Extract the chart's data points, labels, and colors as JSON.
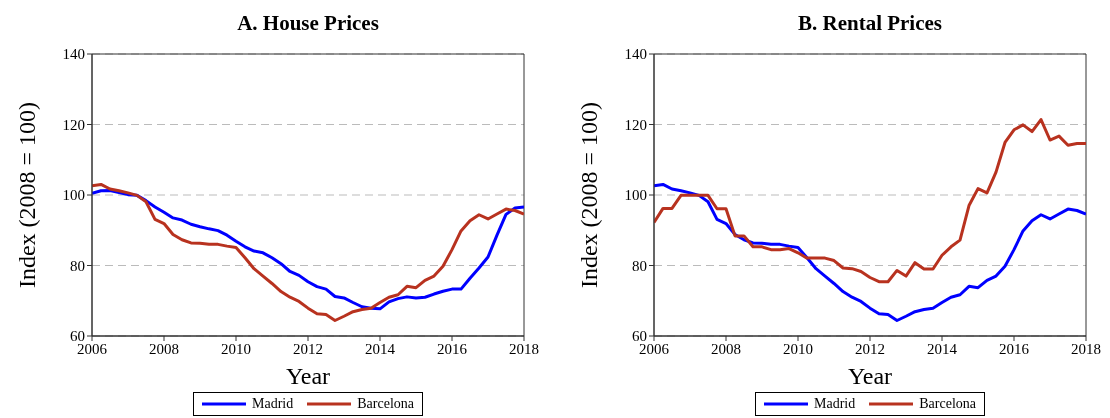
{
  "chart_data": [
    {
      "type": "line",
      "title": "A. House Prices",
      "xlabel": "Year",
      "ylabel": "Index (2008 = 100)",
      "x": [
        2006,
        2006.25,
        2006.5,
        2006.75,
        2007,
        2007.25,
        2007.5,
        2007.75,
        2008,
        2008.25,
        2008.5,
        2008.75,
        2009,
        2009.25,
        2009.5,
        2009.75,
        2010,
        2010.25,
        2010.5,
        2010.75,
        2011,
        2011.25,
        2011.5,
        2011.75,
        2012,
        2012.25,
        2012.5,
        2012.75,
        2013,
        2013.25,
        2013.5,
        2013.75,
        2014,
        2014.25,
        2014.5,
        2014.75,
        2015,
        2015.25,
        2015.5,
        2015.75,
        2016,
        2016.25,
        2016.5,
        2016.75,
        2017,
        2017.25,
        2017.5,
        2017.75,
        2018
      ],
      "series": [
        {
          "name": "Madrid",
          "color": "#0000ff",
          "values": [
            100.5,
            101.2,
            101.3,
            100.7,
            100.1,
            99.9,
            98.4,
            96.6,
            95.1,
            93.5,
            92.9,
            91.7,
            91.0,
            90.4,
            89.9,
            88.6,
            86.9,
            85.3,
            84.1,
            83.6,
            82.2,
            80.5,
            78.3,
            77.2,
            75.4,
            74.0,
            73.3,
            71.2,
            70.8,
            69.5,
            68.3,
            67.9,
            67.7,
            69.7,
            70.6,
            71.1,
            70.8,
            71.0,
            71.9,
            72.7,
            73.3,
            73.3,
            76.4,
            79.3,
            82.4,
            88.6,
            94.5,
            96.3,
            96.6
          ]
        },
        {
          "name": "Barcelona",
          "color": "#b8321f",
          "values": [
            102.6,
            103.0,
            101.7,
            101.2,
            100.6,
            99.9,
            98.1,
            93.1,
            91.9,
            88.8,
            87.3,
            86.4,
            86.3,
            86.0,
            86.0,
            85.5,
            85.1,
            82.2,
            79.1,
            77.0,
            74.9,
            72.6,
            71.0,
            69.8,
            67.9,
            66.3,
            66.1,
            64.4,
            65.6,
            66.9,
            67.5,
            67.9,
            69.5,
            71.0,
            71.7,
            74.1,
            73.7,
            75.8,
            77.0,
            79.8,
            84.5,
            89.8,
            92.7,
            94.4,
            93.2,
            94.6,
            96.0,
            95.6,
            94.6
          ]
        }
      ],
      "xlim": [
        2006,
        2018
      ],
      "xticks": [
        2006,
        2008,
        2010,
        2012,
        2014,
        2016,
        2018
      ],
      "ylim": [
        60,
        140
      ],
      "yticks": [
        60,
        80,
        100,
        120,
        140
      ],
      "grid": "y",
      "legend": "bottom"
    },
    {
      "type": "line",
      "title": "B. Rental Prices",
      "xlabel": "Year",
      "ylabel": "Index (2008 = 100)",
      "x": [
        2006,
        2006.25,
        2006.5,
        2006.75,
        2007,
        2007.25,
        2007.5,
        2007.75,
        2008,
        2008.25,
        2008.5,
        2008.75,
        2009,
        2009.25,
        2009.5,
        2009.75,
        2010,
        2010.25,
        2010.5,
        2010.75,
        2011,
        2011.25,
        2011.5,
        2011.75,
        2012,
        2012.25,
        2012.5,
        2012.75,
        2013,
        2013.25,
        2013.5,
        2013.75,
        2014,
        2014.25,
        2014.5,
        2014.75,
        2015,
        2015.25,
        2015.5,
        2015.75,
        2016,
        2016.25,
        2016.5,
        2016.75,
        2017,
        2017.25,
        2017.5,
        2017.75,
        2018
      ],
      "series": [
        {
          "name": "Madrid",
          "color": "#0000ff",
          "values": [
            102.6,
            103.0,
            101.7,
            101.2,
            100.6,
            99.9,
            98.1,
            93.1,
            91.9,
            88.8,
            87.3,
            86.4,
            86.3,
            86.0,
            86.0,
            85.5,
            85.1,
            82.2,
            79.1,
            77.0,
            74.9,
            72.6,
            71.0,
            69.8,
            67.9,
            66.3,
            66.1,
            64.4,
            65.6,
            66.9,
            67.5,
            67.9,
            69.5,
            71.0,
            71.7,
            74.1,
            73.7,
            75.8,
            77.0,
            79.8,
            84.5,
            89.8,
            92.7,
            94.4,
            93.2,
            94.6,
            96.0,
            95.6,
            94.6
          ]
        },
        {
          "name": "Barcelona",
          "color": "#b8321f",
          "values": [
            92.2,
            96.2,
            96.2,
            99.9,
            99.9,
            99.9,
            99.9,
            96.1,
            96.1,
            88.4,
            88.4,
            85.3,
            85.3,
            84.5,
            84.5,
            84.8,
            83.6,
            82.1,
            82.1,
            82.1,
            81.4,
            79.3,
            79.1,
            78.3,
            76.6,
            75.4,
            75.4,
            78.6,
            77.0,
            80.8,
            79.0,
            79.0,
            82.9,
            85.3,
            87.2,
            97.0,
            101.8,
            100.6,
            106.5,
            114.9,
            118.5,
            119.9,
            118.0,
            121.4,
            115.6,
            116.7,
            114.1,
            114.6,
            114.6
          ]
        }
      ],
      "xlim": [
        2006,
        2018
      ],
      "xticks": [
        2006,
        2008,
        2010,
        2012,
        2014,
        2016,
        2018
      ],
      "ylim": [
        60,
        140
      ],
      "yticks": [
        60,
        80,
        100,
        120,
        140
      ],
      "grid": "y",
      "legend": "bottom"
    }
  ]
}
